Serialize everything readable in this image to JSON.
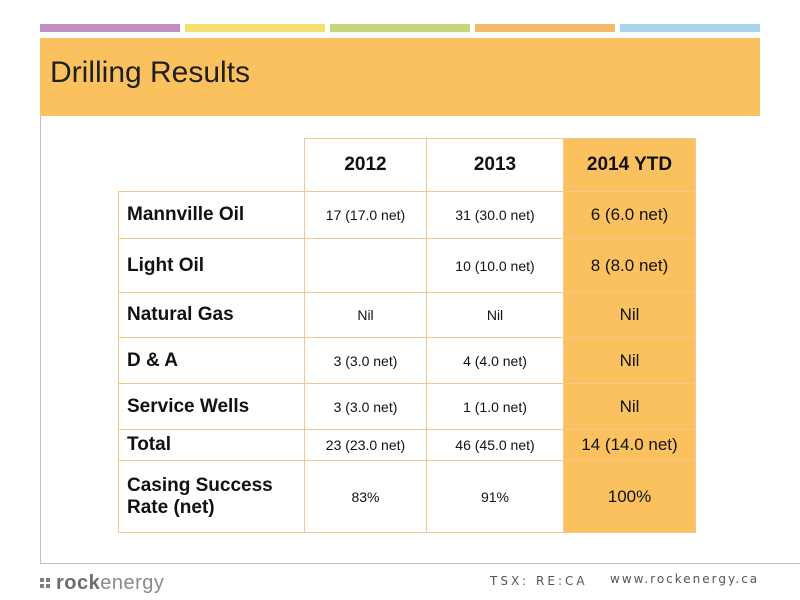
{
  "slide": {
    "title": "Drilling Results"
  },
  "table": {
    "headers": [
      "2012",
      "2013",
      "2014 YTD"
    ],
    "rows": [
      {
        "label": "Mannville Oil",
        "y2012": "17 (17.0 net)",
        "y2013": "31 (30.0 net)",
        "y2014": "6 (6.0 net)"
      },
      {
        "label": "Light Oil",
        "y2012": "",
        "y2013": "10 (10.0 net)",
        "y2014": "8 (8.0 net)"
      },
      {
        "label": "Natural Gas",
        "y2012": "Nil",
        "y2013": "Nil",
        "y2014": "Nil"
      },
      {
        "label": "D & A",
        "y2012": "3 (3.0 net)",
        "y2013": "4 (4.0 net)",
        "y2014": "Nil"
      },
      {
        "label": "Service Wells",
        "y2012": "3 (3.0 net)",
        "y2013": "1 (1.0 net)",
        "y2014": "Nil"
      },
      {
        "label": "Total",
        "y2012": "23 (23.0 net)",
        "y2013": "46 (45.0 net)",
        "y2014": "14 (14.0 net)"
      },
      {
        "label": "Casing Success Rate (net)",
        "y2012": "83%",
        "y2013": "91%",
        "y2014": "100%"
      }
    ]
  },
  "footer": {
    "logo_rock": "rock",
    "logo_energy": "energy",
    "ticker": "TSX: RE:CA",
    "website": "www.rockenergy.ca"
  },
  "colors": {
    "accent": "#fbc15e",
    "stripes": [
      "#c18fc4",
      "#f4df6f",
      "#c5d77e",
      "#f7b86b",
      "#a9d4ec"
    ]
  }
}
